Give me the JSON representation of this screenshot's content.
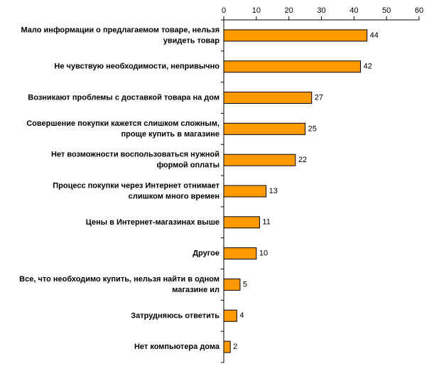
{
  "chart_data": {
    "type": "bar",
    "orientation": "horizontal",
    "categories": [
      "Мало информации о предлагаемом товаре, нельзя\nувидеть товар",
      "Не чувствую необходимости, непривычно",
      "Возникают проблемы с доставкой товара на дом",
      "Совершение покупки кажется слишком сложным,\nпроще купить в магазине",
      "Нет возможности воспользоваться нужной\nформой оплаты",
      "Процесс покупки через Интернет отнимает\nслишком много времен",
      "Цены в Интернет-магазинах выше",
      "Другое",
      "Все, что необходимо купить, нельзя найти в одном\nмагазине ил",
      "Затрудняюсь ответить",
      "Нет компьютера дома"
    ],
    "values": [
      44,
      42,
      27,
      25,
      22,
      13,
      11,
      10,
      5,
      4,
      2
    ],
    "color": "#ff9900",
    "xlim": [
      0,
      60
    ],
    "xticks": [
      0,
      10,
      20,
      30,
      40,
      50,
      60
    ],
    "grid": false
  }
}
